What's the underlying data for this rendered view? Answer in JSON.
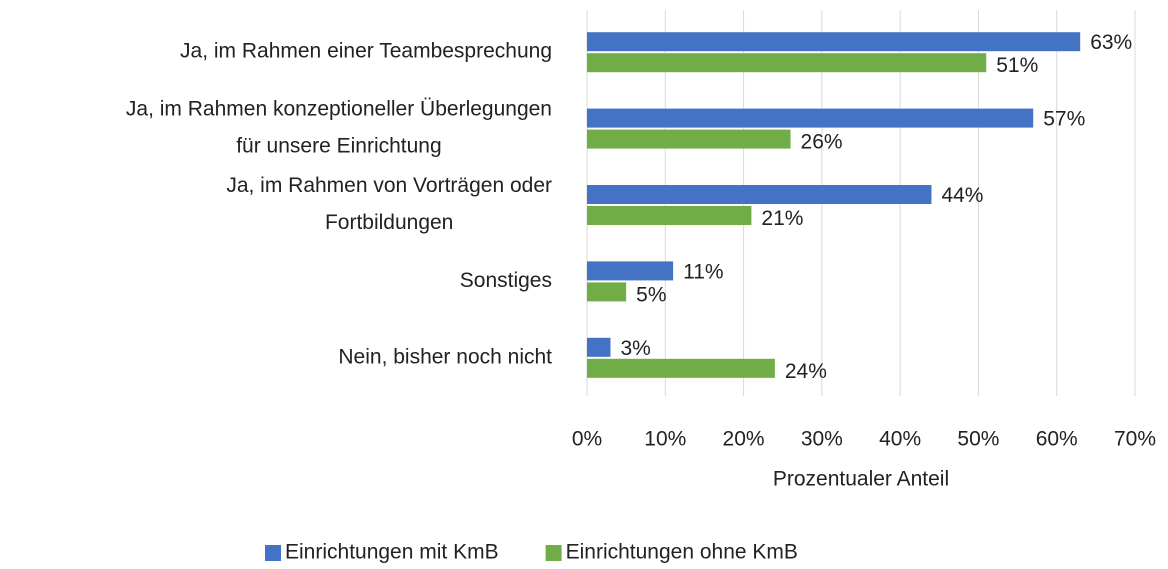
{
  "chart_data": {
    "type": "barh",
    "categories": [
      [
        "Ja, im Rahmen einer Teambesprechung"
      ],
      [
        "Ja, im Rahmen konzeptioneller Überlegungen",
        "für unsere Einrichtung"
      ],
      [
        "Ja, im Rahmen von Vorträgen oder",
        "Fortbildungen"
      ],
      [
        "Sonstiges"
      ],
      [
        "Nein, bisher noch nicht"
      ]
    ],
    "series": [
      {
        "name": "Einrichtungen mit KmB",
        "color": "#4472c4",
        "values": [
          63,
          57,
          44,
          11,
          3
        ],
        "value_labels": [
          "63%",
          "57%",
          "44%",
          "11%",
          "3%"
        ]
      },
      {
        "name": "Einrichtungen ohne KmB",
        "color": "#70ad47",
        "values": [
          51,
          26,
          21,
          5,
          24
        ],
        "value_labels": [
          "51%",
          "26%",
          "21%",
          "5%",
          "24%"
        ]
      }
    ],
    "xlabel": "Prozentualer Anteil",
    "xlim": [
      0,
      70
    ],
    "xticks": [
      {
        "value": 0,
        "label": "0%"
      },
      {
        "value": 10,
        "label": "10%"
      },
      {
        "value": 20,
        "label": "20%"
      },
      {
        "value": 30,
        "label": "30%"
      },
      {
        "value": 40,
        "label": "40%"
      },
      {
        "value": 50,
        "label": "50%"
      },
      {
        "value": 60,
        "label": "60%"
      },
      {
        "value": 70,
        "label": "70%"
      }
    ],
    "grid": true,
    "legend": "bottom"
  }
}
